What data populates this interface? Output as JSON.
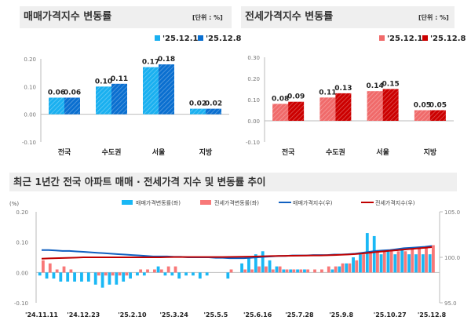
{
  "chart_data": [
    {
      "type": "bar",
      "title": "매매가격지수 변동률",
      "unit": "[단위 : %]",
      "categories": [
        "전국",
        "수도권",
        "서울",
        "지방"
      ],
      "series": [
        {
          "name": "'25.12.1",
          "values": [
            0.06,
            0.1,
            0.17,
            0.02
          ],
          "color": "#1ab0f0"
        },
        {
          "name": "'25.12.8",
          "values": [
            0.06,
            0.11,
            0.18,
            0.02
          ],
          "color": "#0a6fd0"
        }
      ],
      "yticks": [
        "0.20",
        "0.10",
        "0.00",
        "-0.10"
      ],
      "ylim": [
        -0.1,
        0.2
      ]
    },
    {
      "type": "bar",
      "title": "전세가격지수 변동률",
      "unit": "[단위 : %]",
      "categories": [
        "전국",
        "수도권",
        "서울",
        "지방"
      ],
      "series": [
        {
          "name": "'25.12.1",
          "values": [
            0.08,
            0.11,
            0.14,
            0.05
          ],
          "color": "#f06a6a"
        },
        {
          "name": "'25.12.8",
          "values": [
            0.09,
            0.13,
            0.15,
            0.05
          ],
          "color": "#cc0000"
        }
      ],
      "yticks": [
        "0.30",
        "0.20",
        "0.10",
        "0.00",
        "-0.10"
      ],
      "ylim": [
        -0.1,
        0.3
      ]
    },
    {
      "type": "bar+line",
      "title": "최근 1년간 전국 아파트 매매 · 전세가격 지수 및 변동률 추이",
      "ylabel": "(%)",
      "xticks": [
        "'24.11.11",
        "'24.12.23",
        "'25.2.10",
        "'25.3.24",
        "'25.5.5",
        "'25.6.16",
        "'25.7.28",
        "'25.9.8",
        "'25.10.27",
        "'25.12.8"
      ],
      "xtick_weeks": [
        1,
        7,
        14,
        20,
        26,
        32,
        38,
        44,
        51,
        57
      ],
      "yticks_left": [
        "0.20",
        "0.10",
        "0.00",
        "-0.10"
      ],
      "ylim_left": [
        -0.1,
        0.2
      ],
      "yticks_right": [
        "105.0",
        "100.0",
        "95.0"
      ],
      "ylim_right": [
        95,
        105
      ],
      "series": [
        {
          "name": "매매가격변동률(좌)",
          "type": "bar",
          "color": "#1ab8f5",
          "values": [
            -0.01,
            -0.02,
            -0.02,
            -0.03,
            -0.03,
            -0.03,
            -0.03,
            -0.03,
            -0.04,
            -0.05,
            -0.04,
            -0.04,
            -0.03,
            -0.02,
            -0.01,
            -0.01,
            0.0,
            0.02,
            -0.01,
            -0.01,
            -0.02,
            -0.01,
            -0.01,
            -0.02,
            -0.01,
            0.0,
            0.0,
            -0.02,
            0.0,
            0.03,
            0.05,
            0.06,
            0.07,
            0.04,
            0.02,
            0.01,
            0.01,
            0.01,
            0.01,
            0.0,
            0.0,
            0.0,
            0.01,
            0.02,
            0.03,
            0.05,
            0.06,
            0.13,
            0.12,
            0.06,
            0.07,
            0.06,
            0.08,
            0.06,
            0.06,
            0.06,
            0.06
          ]
        },
        {
          "name": "전세가격변동률(좌)",
          "type": "bar",
          "color": "#f87878",
          "values": [
            0.04,
            0.03,
            0.01,
            0.02,
            0.01,
            0.0,
            0.0,
            0.0,
            -0.01,
            -0.01,
            -0.01,
            -0.01,
            -0.01,
            0.0,
            0.01,
            0.01,
            0.01,
            0.01,
            0.02,
            0.02,
            0.0,
            0.0,
            0.0,
            0.0,
            0.0,
            0.0,
            0.0,
            0.01,
            0.0,
            0.01,
            0.01,
            0.02,
            0.02,
            0.01,
            0.02,
            0.01,
            0.01,
            0.01,
            0.01,
            0.01,
            0.01,
            0.02,
            0.02,
            0.03,
            0.03,
            0.04,
            0.06,
            0.07,
            0.07,
            0.07,
            0.07,
            0.07,
            0.07,
            0.08,
            0.08,
            0.08,
            0.09
          ]
        },
        {
          "name": "매매가격지수(우)",
          "type": "line",
          "color": "#1060c0",
          "values": [
            100.8,
            100.8,
            100.75,
            100.7,
            100.7,
            100.65,
            100.6,
            100.55,
            100.5,
            100.45,
            100.4,
            100.35,
            100.3,
            100.25,
            100.2,
            100.15,
            100.1,
            100.1,
            100.1,
            100.05,
            100.05,
            100.0,
            100.0,
            100.0,
            100.0,
            99.95,
            99.95,
            99.9,
            99.9,
            99.9,
            99.95,
            100.0,
            100.05,
            100.1,
            100.15,
            100.15,
            100.2,
            100.2,
            100.2,
            100.25,
            100.25,
            100.25,
            100.3,
            100.3,
            100.35,
            100.4,
            100.5,
            100.6,
            100.7,
            100.75,
            100.8,
            100.9,
            101.0,
            101.05,
            101.1,
            101.15,
            101.25
          ]
        },
        {
          "name": "전세가격지수(우)",
          "type": "line",
          "color": "#c00000",
          "values": [
            99.85,
            99.88,
            99.9,
            99.92,
            99.95,
            99.97,
            100.0,
            100.0,
            100.0,
            100.0,
            100.0,
            100.0,
            100.0,
            100.0,
            100.0,
            100.0,
            100.0,
            100.0,
            100.02,
            100.03,
            100.03,
            100.03,
            100.03,
            100.03,
            100.03,
            100.03,
            100.03,
            100.04,
            100.05,
            100.06,
            100.08,
            100.1,
            100.12,
            100.14,
            100.15,
            100.16,
            100.17,
            100.18,
            100.19,
            100.2,
            100.21,
            100.23,
            100.25,
            100.28,
            100.31,
            100.36,
            100.42,
            100.5,
            100.58,
            100.65,
            100.72,
            100.78,
            100.85,
            100.92,
            100.98,
            101.05,
            101.12
          ]
        }
      ]
    }
  ]
}
